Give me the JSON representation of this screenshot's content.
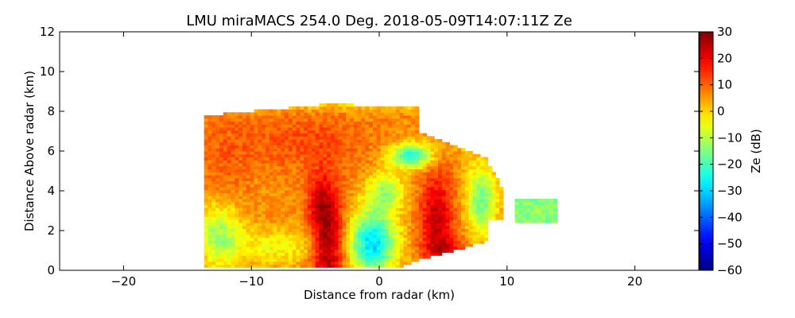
{
  "chart_data": {
    "type": "heatmap",
    "title": "LMU miraMACS 254.0 Deg. 2018-05-09T14:07:11Z  Ze",
    "xlabel": "Distance from radar (km)",
    "ylabel": "Distance Above radar  (km)",
    "xlim": [
      -25,
      25
    ],
    "ylim": [
      0,
      12
    ],
    "x_ticks": [
      -20,
      -10,
      0,
      10,
      20
    ],
    "y_ticks": [
      0,
      2,
      4,
      6,
      8,
      10,
      12
    ],
    "colorbar": {
      "label": "Ze (dB)",
      "range": [
        -60,
        30
      ],
      "ticks": [
        -60,
        -50,
        -40,
        -30,
        -20,
        -10,
        0,
        10,
        20,
        30
      ],
      "colormap": "jet"
    },
    "grid": false,
    "echo_regions": [
      {
        "name": "main-sector",
        "x_range": [
          -13.5,
          8.5
        ],
        "y_range": [
          0.3,
          8.3
        ],
        "typical_ze": 8
      },
      {
        "name": "convective-core-left",
        "x_range": [
          -5,
          -2.5
        ],
        "y_range": [
          0.2,
          4.5
        ],
        "typical_ze": 28
      },
      {
        "name": "convective-core-right",
        "x_range": [
          2,
          6.5
        ],
        "y_range": [
          1,
          5
        ],
        "typical_ze": 22
      },
      {
        "name": "low-reflectivity-gap",
        "x_range": [
          -2.5,
          2
        ],
        "y_range": [
          0.2,
          3
        ],
        "typical_ze": -28
      },
      {
        "name": "isolated-echo",
        "x_range": [
          11,
          13.5
        ],
        "y_range": [
          2.5,
          3.5
        ],
        "typical_ze": -15
      }
    ]
  }
}
